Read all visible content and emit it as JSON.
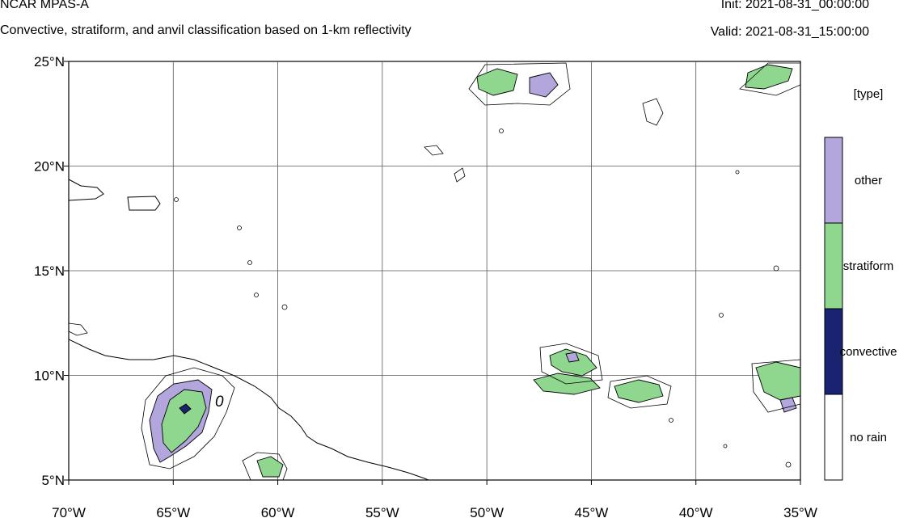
{
  "header": {
    "model_title": "NCAR MPAS-A",
    "subtitle": "Convective, stratiform, and anvil classification based on 1-km reflectivity",
    "init_time": "Init: 2021-08-31_00:00:00",
    "valid_time": "Valid: 2021-08-31_15:00:00"
  },
  "map": {
    "x_ticks": [
      "70°W",
      "65°W",
      "60°W",
      "55°W",
      "50°W",
      "45°W",
      "40°W",
      "35°W"
    ],
    "y_ticks": [
      "25°N",
      "20°N",
      "15°N",
      "10°N",
      "5°N"
    ],
    "lon_range": [
      -70,
      -35
    ],
    "lat_range": [
      5,
      25
    ],
    "grid": true,
    "contour_label": "0"
  },
  "legend": {
    "title": "[type]",
    "placement": "right",
    "items": [
      {
        "label": "other",
        "color": "#b3a6dc"
      },
      {
        "label": "stratiform",
        "color": "#8fd68f"
      },
      {
        "label": "convective",
        "color": "#1a2370"
      },
      {
        "label": "no rain",
        "color": "#ffffff"
      }
    ]
  }
}
